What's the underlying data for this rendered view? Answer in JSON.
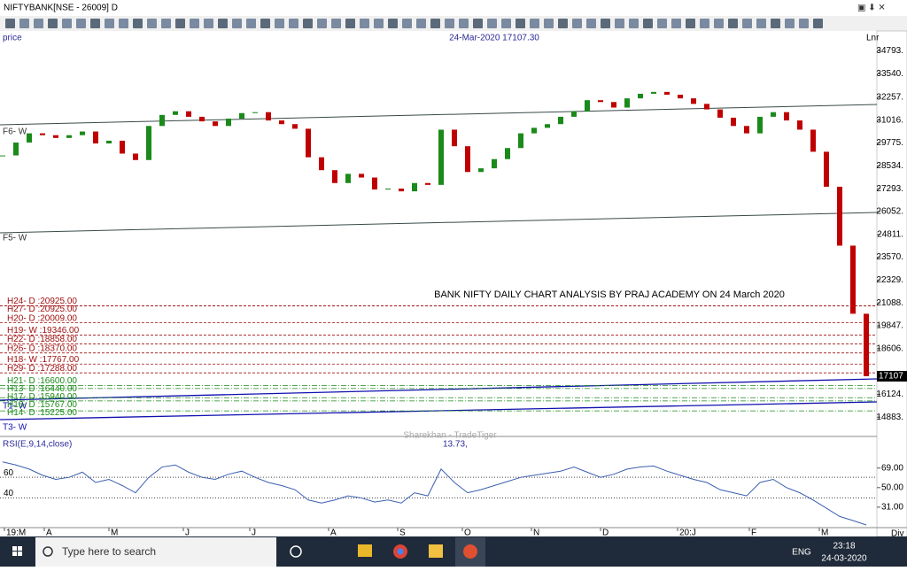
{
  "window": {
    "title": "NIFTYBANK[NSE - 26009] D"
  },
  "chart": {
    "type": "candlestick",
    "header": {
      "left": "price",
      "center": "24-Mar-2020 17107.30",
      "right": "Lnr"
    },
    "annotation": "BANK NIFTY DAILY CHART ANALYSIS BY PRAJ ACADEMY ON 24 March 2020",
    "watermark": "Sharekhan - TradeTiger",
    "up_color": "#1a8a1a",
    "down_color": "#c00000",
    "closes": [
      29100,
      29800,
      30300,
      30200,
      30050,
      30200,
      30400,
      29750,
      29900,
      29200,
      28850,
      30700,
      31300,
      31500,
      31200,
      30950,
      30700,
      31100,
      31400,
      31450,
      31000,
      30800,
      30550,
      29000,
      28300,
      27600,
      28100,
      27900,
      27250,
      27300,
      27150,
      27600,
      27500,
      30500,
      29600,
      28200,
      28400,
      28900,
      29500,
      30300,
      30600,
      30800,
      31200,
      31500,
      32100,
      32000,
      31700,
      32200,
      32450,
      32550,
      32400,
      32200,
      31900,
      31600,
      31150,
      30700,
      30300,
      31200,
      31450,
      31000,
      30500,
      29300,
      27400,
      24200,
      20500,
      17107
    ],
    "ylim": [
      13980,
      35860
    ],
    "yticks": [
      {
        "value": 34793,
        "label": "34793."
      },
      {
        "value": 33540,
        "label": "33540."
      },
      {
        "value": 32257,
        "label": "32257."
      },
      {
        "value": 31016,
        "label": "31016."
      },
      {
        "value": 29775,
        "label": "29775."
      },
      {
        "value": 28534,
        "label": "28534."
      },
      {
        "value": 27293,
        "label": "27293."
      },
      {
        "value": 26052,
        "label": "26052."
      },
      {
        "value": 24811,
        "label": "24811."
      },
      {
        "value": 23570,
        "label": "23570."
      },
      {
        "value": 22329,
        "label": "22329."
      },
      {
        "value": 21088,
        "label": "21088."
      },
      {
        "value": 19847,
        "label": "19847."
      },
      {
        "value": 18606,
        "label": "18606."
      },
      {
        "value": 16124,
        "label": "16124."
      },
      {
        "value": 14883,
        "label": "14883."
      }
    ],
    "last_price_label": "17107",
    "trend_labels": [
      "F6- W",
      "F5- W",
      "T1- W",
      "T3- W"
    ],
    "levels": [
      {
        "label": "H24- D :20925.00",
        "value": 20925,
        "color": "#a01010"
      },
      {
        "label": "H27- D :20925.00",
        "value": 20925,
        "color": "#a01010"
      },
      {
        "label": "H20- D :20009.00",
        "value": 20009,
        "color": "#a01010"
      },
      {
        "label": "H19- W :19346.00",
        "value": 19346,
        "color": "#a01010"
      },
      {
        "label": "H22- D :18858.00",
        "value": 18858,
        "color": "#a01010"
      },
      {
        "label": "H26- D :18370.00",
        "value": 18370,
        "color": "#a01010"
      },
      {
        "label": "H18- W :17767.00",
        "value": 17767,
        "color": "#a01010"
      },
      {
        "label": "H29- D :17288.00",
        "value": 17288,
        "color": "#a01010"
      },
      {
        "label": "H21- D :16600.00",
        "value": 16600,
        "color": "#1a8a1a"
      },
      {
        "label": "H13- D :16440.00",
        "value": 16440,
        "color": "#1a8a1a"
      },
      {
        "label": "H17- D :15940.00",
        "value": 15940,
        "color": "#1a8a1a"
      },
      {
        "label": "H16- D :15767.00",
        "value": 15767,
        "color": "#1a8a1a"
      },
      {
        "label": "H14- D :15225.00",
        "value": 15225,
        "color": "#1a8a1a"
      }
    ]
  },
  "rsi": {
    "label": "RSI(E,9,14,close)",
    "readout": "13.73,",
    "color": "#3a5fb0",
    "values": [
      75,
      72,
      68,
      62,
      58,
      60,
      65,
      55,
      58,
      52,
      45,
      60,
      70,
      72,
      65,
      60,
      58,
      63,
      66,
      60,
      55,
      52,
      48,
      38,
      35,
      38,
      42,
      40,
      36,
      38,
      35,
      45,
      42,
      68,
      55,
      45,
      48,
      52,
      56,
      60,
      62,
      64,
      66,
      70,
      65,
      60,
      63,
      68,
      70,
      71,
      66,
      62,
      58,
      55,
      48,
      45,
      42,
      55,
      58,
      50,
      45,
      38,
      30,
      22,
      18,
      13.73
    ],
    "ylim": [
      12,
      98
    ],
    "yticks": [
      {
        "value": 69,
        "label": "69.00"
      },
      {
        "value": 50,
        "label": "50.00"
      },
      {
        "value": 31,
        "label": "31.00"
      }
    ],
    "left_ticks": [
      60,
      40
    ]
  },
  "x_axis": {
    "labels": [
      "19:M",
      "A",
      "M",
      "J",
      "J",
      "A",
      "S",
      "O",
      "N",
      "D",
      "20:J",
      "F",
      "M"
    ],
    "right_label": "Div"
  },
  "taskbar": {
    "search": "Type here to search",
    "lang": "ENG",
    "time": "23:18",
    "date": "24-03-2020"
  }
}
